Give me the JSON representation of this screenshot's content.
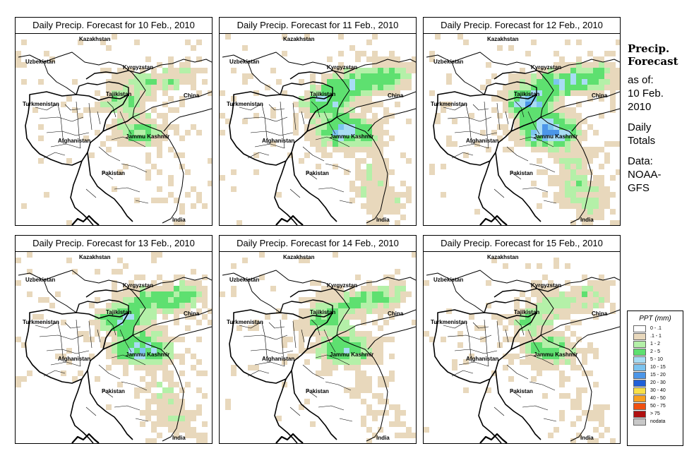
{
  "panels": [
    {
      "title": "Daily Precip. Forecast for  10 Feb., 2010",
      "intensity": 0.5
    },
    {
      "title": "Daily Precip. Forecast for  11 Feb., 2010",
      "intensity": 0.85
    },
    {
      "title": "Daily Precip. Forecast for  12 Feb., 2010",
      "intensity": 1.0
    },
    {
      "title": "Daily Precip. Forecast for  13 Feb., 2010",
      "intensity": 0.8
    },
    {
      "title": "Daily Precip. Forecast for  14 Feb., 2010",
      "intensity": 0.65
    },
    {
      "title": "Daily Precip. Forecast for  15 Feb., 2010",
      "intensity": 0.55
    }
  ],
  "map_labels": {
    "kazakhstan": "Kazakhstan",
    "uzbekistan": "Uzbekistan",
    "kyrgyzstan": "Kyrgyzstan",
    "tajikistan": "Tajikistan",
    "turkmenistan": "Turkmenistan",
    "china": "China",
    "afghanistan": "Afghanistan",
    "jammu_kashmir": "Jammu Kashmir",
    "pakistan": "Pakistan",
    "india": "India"
  },
  "sidebar": {
    "title1": "Precip.",
    "title2": "Forecast",
    "asof1": "as of:",
    "asof2": "10 Feb.",
    "asof3": "2010",
    "daily1": "Daily",
    "daily2": "Totals",
    "data1": "Data:",
    "data2": "NOAA-",
    "data3": "GFS"
  },
  "legend": {
    "title": "PPT (mm)",
    "items": [
      {
        "label": "0 - .1",
        "color": "#ffffff"
      },
      {
        "label": ".1 - 1",
        "color": "#e8d8bc"
      },
      {
        "label": "1 - 2",
        "color": "#b4f0a8"
      },
      {
        "label": "2 - 5",
        "color": "#5ee070"
      },
      {
        "label": "5 - 10",
        "color": "#a8dcf4"
      },
      {
        "label": "10 - 15",
        "color": "#7cc4f0"
      },
      {
        "label": "15 - 20",
        "color": "#4c96e8"
      },
      {
        "label": "20 - 30",
        "color": "#2060d8"
      },
      {
        "label": "30 - 40",
        "color": "#f8e048"
      },
      {
        "label": "40 - 50",
        "color": "#f8a020"
      },
      {
        "label": "50 - 75",
        "color": "#f05010"
      },
      {
        "label": "> 75",
        "color": "#b01010"
      },
      {
        "label": "nodata",
        "color": "#c8c8c8"
      }
    ]
  }
}
